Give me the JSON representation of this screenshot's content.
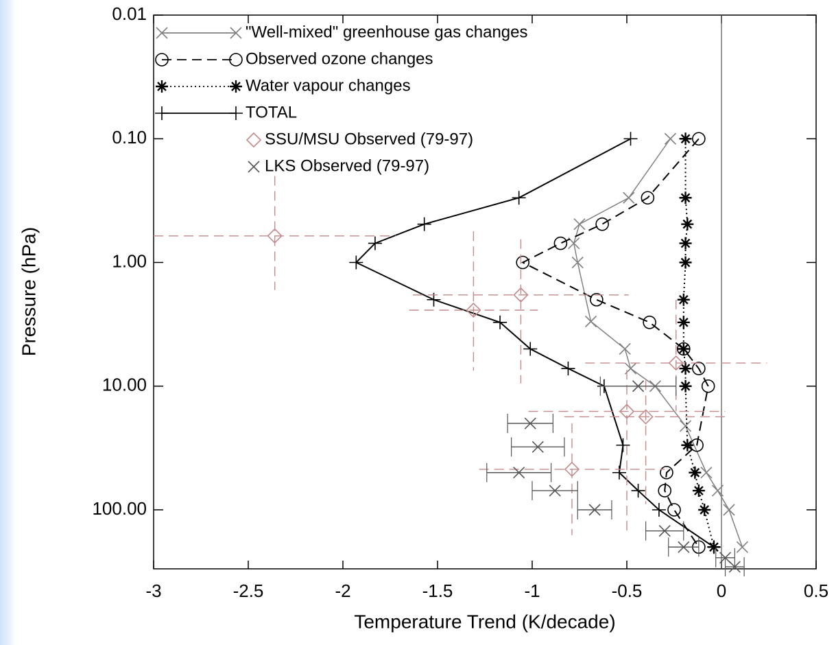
{
  "chart_data": {
    "type": "line",
    "x_label": "Temperature Trend (K/decade)",
    "y_label": "Pressure (hPa)",
    "xlim": [
      -3,
      0.5
    ],
    "xticks": [
      -3,
      -2.5,
      -2,
      -1.5,
      -1,
      -0.5,
      0,
      0.5
    ],
    "ylim": [
      0.01,
      300
    ],
    "y_log": true,
    "y_inverted": true,
    "yticks": [
      {
        "value": 0.01,
        "label": "0.01"
      },
      {
        "value": 0.1,
        "label": "0.10"
      },
      {
        "value": 1,
        "label": "1.00"
      },
      {
        "value": 10,
        "label": "10.00"
      },
      {
        "value": 100,
        "label": "100.00"
      }
    ],
    "reference_line_x": 0,
    "series": [
      {
        "name": "\"Well-mixed\" greenhouse gas changes",
        "color": "#808080",
        "line": "solid",
        "marker": "x",
        "x": [
          -0.27,
          -0.49,
          -0.75,
          -0.78,
          -0.76,
          -0.69,
          -0.51,
          -0.48,
          -0.35,
          -0.19,
          -0.08,
          -0.02,
          0.04,
          0.11
        ],
        "y": [
          0.1,
          0.3,
          0.49,
          0.7,
          1.0,
          3.0,
          5.0,
          7.2,
          10,
          21,
          50,
          70,
          100,
          200
        ]
      },
      {
        "name": "Observed ozone changes",
        "color": "#000000",
        "line": "dashed",
        "marker": "o",
        "x": [
          -0.12,
          -0.39,
          -0.63,
          -0.85,
          -1.05,
          -0.66,
          -0.38,
          -0.2,
          -0.12,
          -0.07,
          -0.13,
          -0.29,
          -0.3,
          -0.25,
          -0.12
        ],
        "y": [
          0.1,
          0.3,
          0.49,
          0.7,
          1.0,
          2.0,
          3.05,
          5.0,
          7.2,
          10,
          30,
          50,
          70,
          100,
          200
        ]
      },
      {
        "name": "Water vapour changes",
        "color": "#000000",
        "line": "dotted",
        "marker": "*",
        "x": [
          -0.19,
          -0.19,
          -0.18,
          -0.19,
          -0.19,
          -0.2,
          -0.2,
          -0.2,
          -0.19,
          -0.19,
          -0.18,
          -0.14,
          -0.12,
          -0.09,
          -0.04
        ],
        "y": [
          0.1,
          0.3,
          0.49,
          0.7,
          1.0,
          2.0,
          3.05,
          5.0,
          7.2,
          10,
          30,
          50,
          70,
          100,
          200
        ]
      },
      {
        "name": "TOTAL",
        "color": "#000000",
        "line": "solid",
        "marker": "+",
        "x": [
          -0.48,
          -1.07,
          -1.57,
          -1.83,
          -1.93,
          -1.52,
          -1.17,
          -1.01,
          -0.81,
          -0.62,
          -0.52,
          -0.54,
          -0.44,
          -0.33,
          -0.04
        ],
        "y": [
          0.1,
          0.3,
          0.49,
          0.7,
          1.0,
          2.0,
          3.05,
          5.0,
          7.2,
          10,
          30,
          50,
          70,
          100,
          200
        ]
      },
      {
        "name": "SSU/MSU Observed (79-97)",
        "color": "#c48a8a",
        "line": "none",
        "marker": "diamond",
        "errorbar": "dashed",
        "x": [
          -2.36,
          -1.06,
          -1.31,
          -0.24,
          -0.5,
          -0.4,
          -0.79
        ],
        "y": [
          0.61,
          1.83,
          2.43,
          6.5,
          16,
          17.7,
          47
        ],
        "xerr": [
          0.64,
          0.57,
          0.34,
          0.48,
          0.52,
          0.43,
          0.49
        ],
        "yrange": [
          [
            0.2,
            1.67
          ],
          [
            0.65,
            9.5
          ],
          [
            0.56,
            7.5
          ],
          [
            2.0,
            16
          ],
          [
            7.4,
            160
          ],
          [
            9,
            90
          ],
          [
            20,
            160
          ]
        ]
      },
      {
        "name": "LKS Observed (79-97)",
        "color": "#555555",
        "line": "none",
        "marker": "x",
        "errorbar": "solid",
        "x": [
          -0.44,
          -1.01,
          -0.97,
          -1.07,
          -0.88,
          -0.67,
          -0.3,
          -0.2,
          0.02,
          0.07
        ],
        "y": [
          10,
          20,
          31,
          50,
          70,
          100,
          148,
          200,
          244,
          289
        ],
        "xerr": [
          0.2,
          0.12,
          0.14,
          0.17,
          0.12,
          0.09,
          0.1,
          0.08,
          0.05,
          0.05
        ]
      }
    ]
  }
}
